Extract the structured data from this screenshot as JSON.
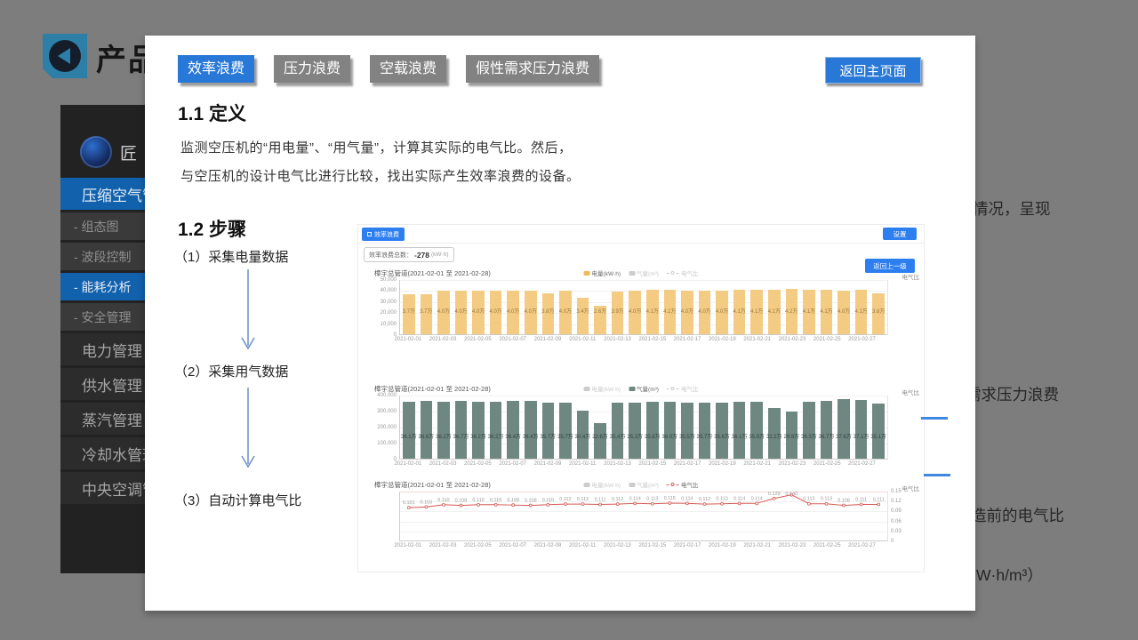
{
  "page": {
    "title_clipped": "产品"
  },
  "background": {
    "sidebar": {
      "logo_text": "匠",
      "items": [
        {
          "label": "压缩空气管理",
          "type": "top",
          "active": true
        },
        {
          "label": "- 组态图",
          "type": "sub",
          "active": false
        },
        {
          "label": "- 波段控制",
          "type": "sub",
          "active": false
        },
        {
          "label": "- 能耗分析",
          "type": "sub",
          "active": true
        },
        {
          "label": "- 安全管理",
          "type": "sub",
          "active": false
        },
        {
          "label": "电力管理",
          "type": "top",
          "active": false
        },
        {
          "label": "供水管理",
          "type": "top",
          "active": false
        },
        {
          "label": "蒸汽管理",
          "type": "top",
          "active": false
        },
        {
          "label": "冷却水管理",
          "type": "top",
          "active": false
        },
        {
          "label": "中央空调管理",
          "type": "top",
          "active": false
        }
      ]
    },
    "right_texts": [
      "情况，呈现",
      "需求压力浪费",
      "造前的电气比",
      "W·h/m³）"
    ]
  },
  "panel": {
    "tabs": [
      {
        "label": "效率浪费",
        "active": true
      },
      {
        "label": "压力浪费",
        "active": false
      },
      {
        "label": "空载浪费",
        "active": false
      },
      {
        "label": "假性需求压力浪费",
        "active": false
      }
    ],
    "home_button": "返回主页面",
    "def_heading": "1.1 定义",
    "def_line1": "监测空压机的“用电量”、“用气量”，计算其实际的电气比。然后，",
    "def_line2": "与空压机的设计电气比进行比较，找出实际产生效率浪费的设备。",
    "steps_heading": "1.2 步骤",
    "steps": [
      "（1）采集电量数据",
      "（2）采集用气数据",
      "（3）自动计算电气比"
    ],
    "shot": {
      "tag": "效率浪费",
      "settings": "设置",
      "summary_label": "效率浪费总数：",
      "summary_value": "-278",
      "summary_unit": "(kW·h)",
      "back_level": "返回上一级",
      "ratio_axis": "电气比"
    }
  },
  "chart_data": [
    {
      "type": "bar",
      "title": "樟宇总管道(2021-02-01 至 2021-02-28)",
      "color": "#f3cb83",
      "label_color": "#9a7a3e",
      "label_bottom": "36%",
      "legend": [
        {
          "label": "电量(kW·h)",
          "state": "active",
          "color": "#f0b85c"
        },
        {
          "label": "气量(m³)",
          "state": "inactive",
          "color": "#6f8781"
        },
        {
          "label": "电气比",
          "state": "inactive",
          "color": "#d75a52",
          "marker": "circle"
        }
      ],
      "ylabel_right": "电气比",
      "x": [
        "2021-02-01",
        "2021-02-02",
        "2021-02-03",
        "2021-02-04",
        "2021-02-05",
        "2021-02-06",
        "2021-02-07",
        "2021-02-08",
        "2021-02-09",
        "2021-02-10",
        "2021-02-11",
        "2021-02-12",
        "2021-02-13",
        "2021-02-14",
        "2021-02-15",
        "2021-02-16",
        "2021-02-17",
        "2021-02-18",
        "2021-02-19",
        "2021-02-20",
        "2021-02-21",
        "2021-02-22",
        "2021-02-23",
        "2021-02-24",
        "2021-02-25",
        "2021-02-26",
        "2021-02-27",
        "2021-02-28"
      ],
      "values": [
        37000,
        37000,
        40000,
        40000,
        40000,
        40000,
        40000,
        40000,
        38000,
        40000,
        34000,
        26000,
        39000,
        40000,
        41000,
        41000,
        40000,
        40000,
        40000,
        41000,
        41000,
        41000,
        42000,
        41000,
        41000,
        40000,
        41000,
        38000
      ],
      "bar_labels": [
        "3.7万",
        "3.7万",
        "4.0万",
        "4.0万",
        "4.0万",
        "4.0万",
        "4.0万",
        "4.0万",
        "3.8万",
        "4.0万",
        "3.4万",
        "2.6万",
        "3.9万",
        "4.0万",
        "4.1万",
        "4.1万",
        "4.0万",
        "4.0万",
        "4.0万",
        "4.1万",
        "4.1万",
        "4.1万",
        "4.2万",
        "4.1万",
        "4.1万",
        "4.0万",
        "4.1万",
        "3.8万"
      ],
      "ylim": [
        0,
        50000
      ],
      "y_ticks": [
        "50,000",
        "40,000",
        "30,000",
        "20,000",
        "10,000",
        "0"
      ],
      "y_ticks_side": "left"
    },
    {
      "type": "bar",
      "title": "樟宇总管道(2021-02-01 至 2021-02-28)",
      "color": "#6f8781",
      "label_color": "#31423d",
      "label_bottom": "30%",
      "legend": [
        {
          "label": "电量(kW·h)",
          "state": "inactive",
          "color": "#f0b85c"
        },
        {
          "label": "气量(m³)",
          "state": "active",
          "color": "#6f8781"
        },
        {
          "label": "电气比",
          "state": "inactive",
          "color": "#d75a52",
          "marker": "circle"
        }
      ],
      "ylabel_right": "电气比",
      "x": [
        "2021-02-01",
        "2021-02-02",
        "2021-02-03",
        "2021-02-04",
        "2021-02-05",
        "2021-02-06",
        "2021-02-07",
        "2021-02-08",
        "2021-02-09",
        "2021-02-10",
        "2021-02-11",
        "2021-02-12",
        "2021-02-13",
        "2021-02-14",
        "2021-02-15",
        "2021-02-16",
        "2021-02-17",
        "2021-02-18",
        "2021-02-19",
        "2021-02-20",
        "2021-02-21",
        "2021-02-22",
        "2021-02-23",
        "2021-02-24",
        "2021-02-25",
        "2021-02-26",
        "2021-02-27",
        "2021-02-28"
      ],
      "values": [
        361000,
        366000,
        362000,
        367000,
        362000,
        362000,
        364000,
        364000,
        357000,
        357000,
        304000,
        226000,
        354000,
        353000,
        358000,
        360000,
        355000,
        357000,
        356000,
        361000,
        359000,
        322000,
        298000,
        363000,
        367000,
        376000,
        371000,
        351000
      ],
      "bar_labels": [
        "36.1万",
        "36.6万",
        "36.2万",
        "36.7万",
        "36.2万",
        "36.2万",
        "36.4万",
        "36.4万",
        "35.7万",
        "35.7万",
        "30.4万",
        "22.6万",
        "35.4万",
        "35.3万",
        "35.8万",
        "36.0万",
        "35.5万",
        "35.7万",
        "35.6万",
        "36.1万",
        "35.9万",
        "32.2万",
        "29.8万",
        "36.3万",
        "36.7万",
        "37.6万",
        "37.1万",
        "35.1万"
      ],
      "ylim": [
        0,
        400000
      ],
      "y_ticks": [
        "400,000",
        "300,000",
        "200,000",
        "100,000",
        "0"
      ],
      "y_ticks_side": "left"
    },
    {
      "type": "line",
      "title": "樟宇总管道(2021-02-01 至 2021-02-28)",
      "color": "#d75a52",
      "label_color": "#999999",
      "legend": [
        {
          "label": "电量(kW·h)",
          "state": "inactive",
          "color": "#f0b85c"
        },
        {
          "label": "气量(m³)",
          "state": "inactive",
          "color": "#6f8781"
        },
        {
          "label": "电气比",
          "state": "active",
          "color": "#d75a52",
          "marker": "circle"
        }
      ],
      "ylabel_right": "电气比",
      "x": [
        "2021-02-01",
        "2021-02-02",
        "2021-02-03",
        "2021-02-04",
        "2021-02-05",
        "2021-02-06",
        "2021-02-07",
        "2021-02-08",
        "2021-02-09",
        "2021-02-10",
        "2021-02-11",
        "2021-02-12",
        "2021-02-13",
        "2021-02-14",
        "2021-02-15",
        "2021-02-16",
        "2021-02-17",
        "2021-02-18",
        "2021-02-19",
        "2021-02-20",
        "2021-02-21",
        "2021-02-22",
        "2021-02-23",
        "2021-02-24",
        "2021-02-25",
        "2021-02-26",
        "2021-02-27",
        "2021-02-28"
      ],
      "values": [
        0.101,
        0.103,
        0.11,
        0.108,
        0.11,
        0.11,
        0.109,
        0.108,
        0.11,
        0.112,
        0.112,
        0.111,
        0.112,
        0.114,
        0.113,
        0.115,
        0.114,
        0.112,
        0.113,
        0.114,
        0.114,
        0.129,
        0.14,
        0.113,
        0.113,
        0.108,
        0.111,
        0.111
      ],
      "point_labels": [
        "0.101",
        "0.103",
        "0.110",
        "0.108",
        "0.110",
        "0.110",
        "0.109",
        "0.108",
        "0.110",
        "0.112",
        "0.112",
        "0.111",
        "0.112",
        "0.114",
        "0.113",
        "0.115",
        "0.114",
        "0.112",
        "0.113",
        "0.114",
        "0.114",
        "0.129",
        "0.140",
        "0.113",
        "0.113",
        "0.108",
        "0.111",
        "0.111"
      ],
      "ylim": [
        0,
        0.15
      ],
      "y_ticks": [
        "0.15",
        "0.12",
        "0.09",
        "0.06",
        "0.03",
        "0"
      ],
      "y_ticks_side": "right"
    }
  ]
}
